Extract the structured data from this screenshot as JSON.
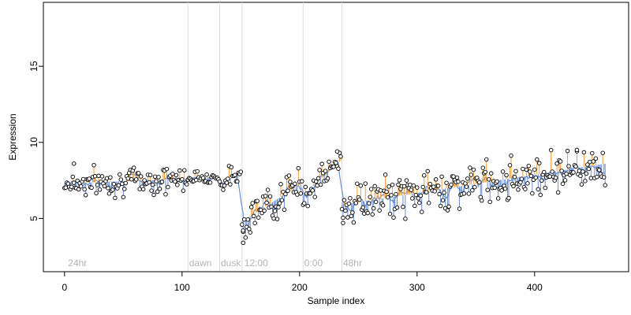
{
  "chart_data": {
    "type": "scatter",
    "title": "",
    "xlabel": "Sample index",
    "ylabel": "Expression",
    "xlim": [
      -18,
      480
    ],
    "ylim": [
      1.5,
      19.2
    ],
    "xticks": [
      0,
      100,
      200,
      300,
      400
    ],
    "yticks": [
      5,
      10,
      15
    ],
    "grid": false,
    "legend": "none",
    "colors": {
      "points_fill": "#ffffff",
      "points_stroke": "#000000",
      "line": "#6a8fd8",
      "above": "#f0a030",
      "separator": "#dddddd"
    },
    "annotations": [
      {
        "label": "24hr",
        "x": 3
      },
      {
        "label": "dawn",
        "x": 106
      },
      {
        "label": "dusk",
        "x": 133
      },
      {
        "label": "12:00",
        "x": 153
      },
      {
        "label": "0:00",
        "x": 204
      },
      {
        "label": "48hr",
        "x": 237
      }
    ],
    "separators": [
      105,
      132,
      151,
      203,
      236
    ],
    "segments": [
      {
        "x0": 0,
        "x1": 104,
        "y0": 7.3,
        "y1": 7.6,
        "noise": 0.45
      },
      {
        "x0": 105,
        "x1": 131,
        "y0": 7.7,
        "y1": 7.7,
        "noise": 0.18
      },
      {
        "x0": 132,
        "x1": 150,
        "y0": 7.3,
        "y1": 8.0,
        "noise": 0.35
      },
      {
        "x0": 151,
        "x1": 202,
        "y0": 4.8,
        "y1": 7.3,
        "noise": 0.6
      },
      {
        "x0": 203,
        "x1": 235,
        "y0": 6.5,
        "y1": 8.8,
        "noise": 0.45
      },
      {
        "x0": 236,
        "x1": 460,
        "y0": 5.9,
        "y1": 8.6,
        "noise": 0.65
      }
    ],
    "outliers": [
      {
        "x": 152,
        "y": 3.4
      },
      {
        "x": 152,
        "y": 4.2
      },
      {
        "x": 8,
        "y": 8.6
      },
      {
        "x": 436,
        "y": 9.5
      },
      {
        "x": 232,
        "y": 9.4
      },
      {
        "x": 237,
        "y": 4.7
      }
    ]
  }
}
